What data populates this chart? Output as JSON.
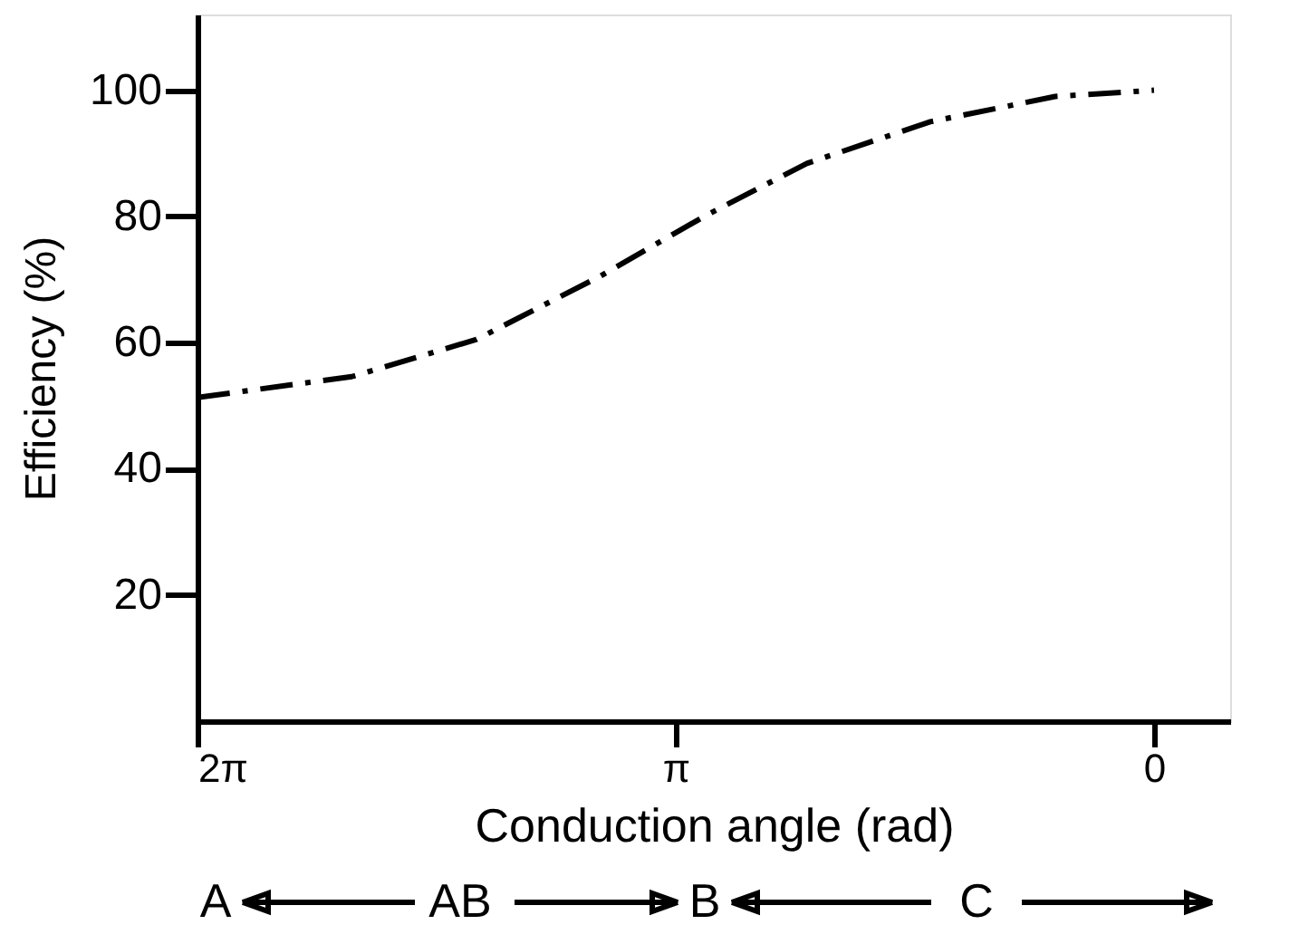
{
  "chart_data": {
    "type": "line",
    "xlabel": "Conduction angle (rad)",
    "ylabel": "Efficiency (%)",
    "x": [
      6.283,
      5.27,
      4.45,
      3.64,
      2.94,
      2.28,
      1.47,
      0.65,
      0
    ],
    "series": [
      {
        "color": "#000000",
        "values": [
          51.3,
          54.6,
          60.5,
          70.5,
          80.2,
          88.4,
          95,
          99,
          100
        ]
      }
    ],
    "xlim": [
      6.283,
      -0.5
    ],
    "xticks": [
      {
        "value": 6.283,
        "label": "2π"
      },
      {
        "value": 3.1416,
        "label": "π"
      },
      0
    ],
    "ylim": [
      0,
      112
    ],
    "yticks": [
      20,
      40,
      60,
      80,
      100
    ],
    "annotations": [
      "A",
      "AB",
      "B",
      "C"
    ],
    "grid": false,
    "marker": "none",
    "line_style": "dashed"
  }
}
